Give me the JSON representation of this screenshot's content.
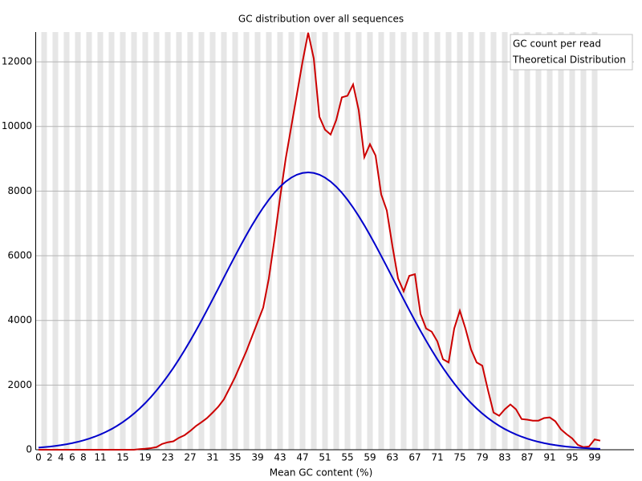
{
  "chart_data": {
    "type": "line",
    "title": "GC distribution over all sequences",
    "xlabel": "Mean GC content (%)",
    "x": [
      0,
      1,
      2,
      3,
      4,
      5,
      6,
      7,
      8,
      9,
      10,
      11,
      12,
      13,
      14,
      15,
      16,
      17,
      18,
      19,
      20,
      21,
      22,
      23,
      24,
      25,
      26,
      27,
      28,
      29,
      30,
      31,
      32,
      33,
      34,
      35,
      36,
      37,
      38,
      39,
      40,
      41,
      42,
      43,
      44,
      45,
      46,
      47,
      48,
      49,
      50,
      51,
      52,
      53,
      54,
      55,
      56,
      57,
      58,
      59,
      60,
      61,
      62,
      63,
      64,
      65,
      66,
      67,
      68,
      69,
      70,
      71,
      72,
      73,
      74,
      75,
      76,
      77,
      78,
      79,
      80,
      81,
      82,
      83,
      84,
      85,
      86,
      87,
      88,
      89,
      90,
      91,
      92,
      93,
      94,
      95,
      96,
      97,
      98,
      99,
      100
    ],
    "series": [
      {
        "name": "GC count per read",
        "color": "#cc0000",
        "values": [
          0,
          0,
          0,
          0,
          0,
          0,
          0,
          0,
          0,
          0,
          0,
          0,
          0,
          0,
          0,
          0,
          0,
          0,
          20,
          30,
          50,
          80,
          180,
          230,
          260,
          370,
          450,
          580,
          730,
          850,
          980,
          1150,
          1330,
          1560,
          1900,
          2250,
          2650,
          3050,
          3500,
          3950,
          4400,
          5300,
          6500,
          7800,
          9000,
          10000,
          11000,
          12000,
          12900,
          12100,
          10300,
          9900,
          9750,
          10200,
          10900,
          10950,
          11300,
          10500,
          9050,
          9450,
          9100,
          7900,
          7400,
          6300,
          5300,
          4900,
          5380,
          5430,
          4200,
          3750,
          3650,
          3350,
          2800,
          2700,
          3750,
          4300,
          3750,
          3100,
          2700,
          2600,
          1850,
          1150,
          1050,
          1250,
          1400,
          1250,
          950,
          930,
          900,
          900,
          980,
          1000,
          880,
          630,
          480,
          350,
          150,
          80,
          100,
          320,
          280
        ]
      },
      {
        "name": "Theoretical Distribution",
        "color": "#0000cc",
        "values": [
          65,
          80,
          97,
          118,
          142,
          171,
          204,
          244,
          289,
          342,
          403,
          472,
          551,
          640,
          741,
          854,
          980,
          1120,
          1274,
          1444,
          1629,
          1831,
          2049,
          2282,
          2532,
          2797,
          3078,
          3371,
          3676,
          3993,
          4319,
          4651,
          4987,
          5327,
          5665,
          5997,
          6323,
          6639,
          6942,
          7227,
          7492,
          7734,
          7950,
          8137,
          8294,
          8418,
          8508,
          8562,
          8580,
          8562,
          8508,
          8418,
          8294,
          8137,
          7950,
          7734,
          7492,
          7227,
          6942,
          6639,
          6323,
          5997,
          5665,
          5327,
          4987,
          4651,
          4319,
          3993,
          3676,
          3371,
          3078,
          2797,
          2532,
          2282,
          2049,
          1831,
          1629,
          1444,
          1274,
          1120,
          980,
          854,
          741,
          640,
          551,
          472,
          403,
          342,
          289,
          244,
          204,
          171,
          142,
          118,
          97,
          80,
          65,
          53,
          43,
          35,
          28
        ]
      }
    ],
    "xlim": [
      -0.5,
      106
    ],
    "xticks": [
      0,
      2,
      4,
      6,
      8,
      11,
      15,
      19,
      23,
      27,
      31,
      35,
      39,
      43,
      47,
      51,
      55,
      59,
      63,
      67,
      71,
      75,
      79,
      83,
      87,
      91,
      95,
      99
    ],
    "ylim": [
      0,
      12920
    ],
    "yticks": [
      0,
      2000,
      4000,
      6000,
      8000,
      10000,
      12000
    ],
    "grid": true,
    "legend": "top-right"
  }
}
